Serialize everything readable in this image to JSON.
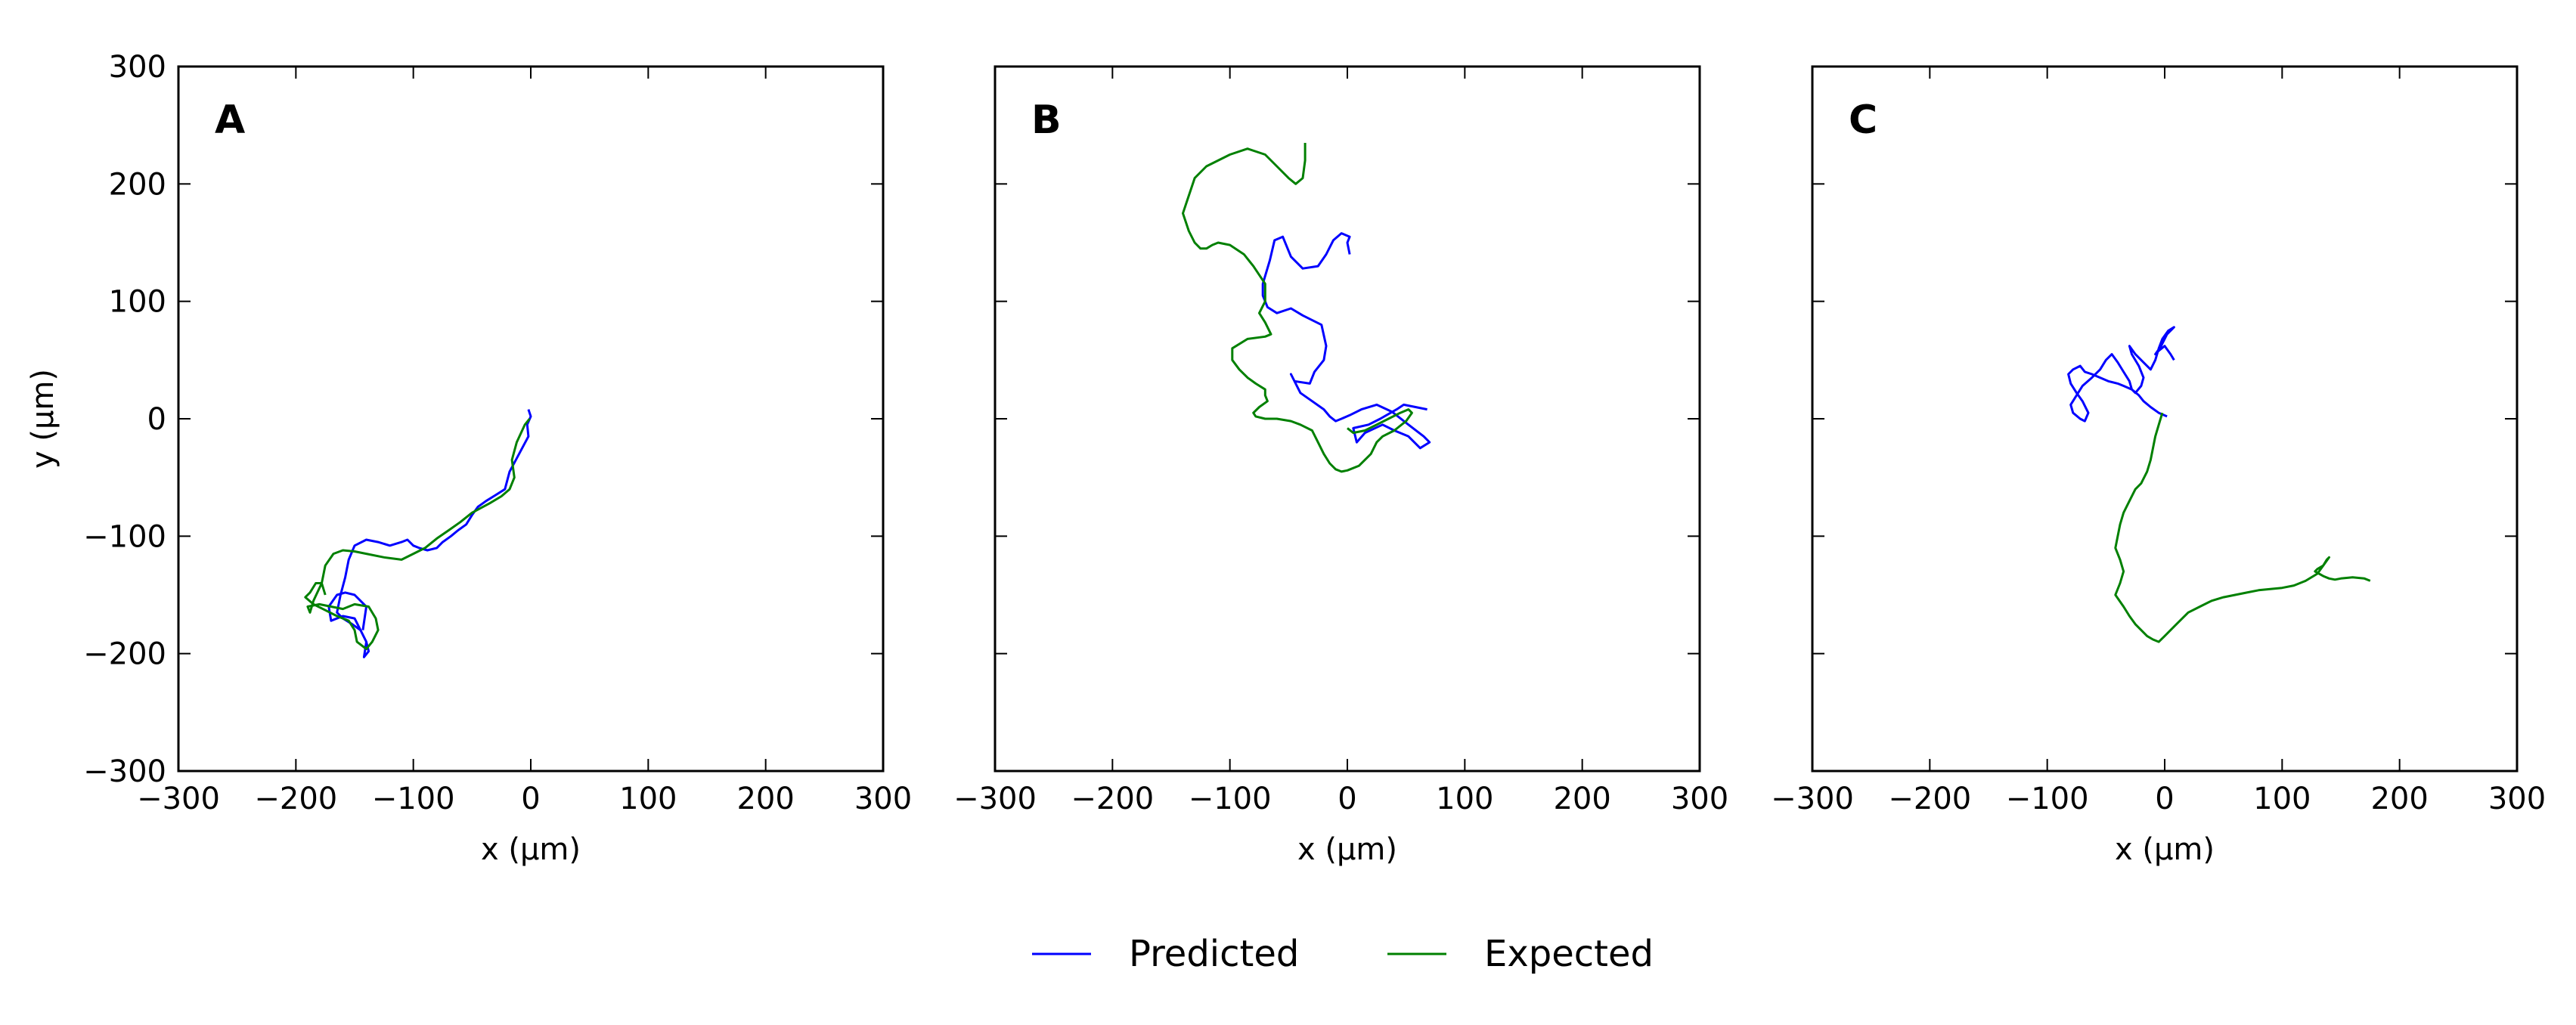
{
  "chart_data": [
    {
      "type": "line",
      "panel_label": "A",
      "xlabel": "x (µm)",
      "ylabel": "y (µm)",
      "xlim": [
        -300,
        300
      ],
      "ylim": [
        -300,
        300
      ],
      "xticks": [
        -300,
        -200,
        -100,
        0,
        100,
        200,
        300
      ],
      "yticks": [
        -300,
        -200,
        -100,
        0,
        100,
        200,
        300
      ],
      "grid": false,
      "series": [
        {
          "name": "Predicted",
          "color": "#0000ff",
          "x": [
            -2,
            0,
            -3,
            -2,
            -10,
            -18,
            -22,
            -30,
            -38,
            -45,
            -50,
            -55,
            -62,
            -68,
            -75,
            -80,
            -88,
            -95,
            -100,
            -105,
            -110,
            -120,
            -130,
            -140,
            -150,
            -155,
            -158,
            -162,
            -165,
            -160,
            -152,
            -145,
            -140,
            -138,
            -142,
            -140,
            -145,
            -150,
            -160,
            -170,
            -172,
            -165,
            -158,
            -150,
            -145,
            -140,
            -143
          ],
          "y": [
            8,
            2,
            -5,
            -15,
            -30,
            -45,
            -60,
            -65,
            -70,
            -75,
            -82,
            -90,
            -95,
            -100,
            -105,
            -110,
            -112,
            -110,
            -108,
            -103,
            -105,
            -108,
            -105,
            -103,
            -108,
            -120,
            -135,
            -150,
            -165,
            -170,
            -175,
            -180,
            -190,
            -198,
            -203,
            -190,
            -180,
            -170,
            -168,
            -172,
            -160,
            -150,
            -148,
            -150,
            -155,
            -160,
            -180
          ]
        },
        {
          "name": "Expected",
          "color": "#008000",
          "x": [
            -1,
            -5,
            -12,
            -16,
            -14,
            -18,
            -25,
            -35,
            -50,
            -60,
            -70,
            -80,
            -90,
            -100,
            -110,
            -125,
            -140,
            -150,
            -160,
            -168,
            -175,
            -178,
            -185,
            -188,
            -190,
            -180,
            -170,
            -160,
            -150,
            -138,
            -132,
            -130,
            -135,
            -140,
            -148,
            -150,
            -155,
            -165,
            -175,
            -185,
            -192,
            -188,
            -183,
            -178,
            -175
          ],
          "y": [
            0,
            -5,
            -20,
            -35,
            -50,
            -60,
            -66,
            -72,
            -80,
            -88,
            -95,
            -102,
            -110,
            -115,
            -120,
            -118,
            -115,
            -113,
            -112,
            -115,
            -125,
            -140,
            -155,
            -165,
            -160,
            -158,
            -160,
            -162,
            -158,
            -160,
            -170,
            -180,
            -190,
            -196,
            -190,
            -180,
            -172,
            -168,
            -163,
            -158,
            -152,
            -148,
            -140,
            -140,
            -150
          ]
        }
      ]
    },
    {
      "type": "line",
      "panel_label": "B",
      "xlabel": "x (µm)",
      "ylabel": "",
      "xlim": [
        -300,
        300
      ],
      "ylim": [
        -300,
        300
      ],
      "xticks": [
        -300,
        -200,
        -100,
        0,
        100,
        200,
        300
      ],
      "yticks": [
        -300,
        -200,
        -100,
        0,
        100,
        200,
        300
      ],
      "grid": false,
      "series": [
        {
          "name": "Predicted",
          "color": "#0000ff",
          "x": [
            2,
            0,
            2,
            -5,
            -12,
            -18,
            -25,
            -38,
            -48,
            -55,
            -62,
            -66,
            -72,
            -72,
            -68,
            -60,
            -48,
            -38,
            -22,
            -18,
            -20,
            -28,
            -32,
            -45,
            -48,
            -40,
            -30,
            -20,
            -15,
            -10,
            -5,
            2,
            12,
            25,
            38,
            52,
            65,
            70,
            62,
            52,
            40,
            30,
            15,
            8,
            5,
            18,
            28,
            42,
            48,
            58,
            68
          ],
          "y": [
            140,
            150,
            155,
            158,
            152,
            140,
            130,
            128,
            138,
            155,
            152,
            135,
            115,
            105,
            95,
            90,
            94,
            88,
            80,
            62,
            50,
            40,
            30,
            32,
            38,
            22,
            15,
            8,
            2,
            -2,
            0,
            3,
            8,
            12,
            6,
            -5,
            -15,
            -20,
            -25,
            -15,
            -10,
            -5,
            -12,
            -20,
            -8,
            -5,
            0,
            8,
            12,
            10,
            8
          ]
        },
        {
          "name": "Expected",
          "color": "#008000",
          "x": [
            -36,
            -36,
            -38,
            -44,
            -50,
            -60,
            -70,
            -85,
            -100,
            -120,
            -130,
            -135,
            -140,
            -135,
            -130,
            -125,
            -120,
            -115,
            -110,
            -100,
            -88,
            -80,
            -70,
            -70,
            -75,
            -70,
            -65,
            -70,
            -85,
            -98,
            -98,
            -92,
            -85,
            -78,
            -70,
            -70,
            -68,
            -75,
            -80,
            -78,
            -70,
            -60,
            -48,
            -40,
            -30,
            -25,
            -20,
            -15,
            -10,
            -5,
            0,
            10,
            20,
            25,
            30,
            40,
            50,
            55,
            52,
            45,
            35,
            25,
            15,
            5,
            0
          ],
          "y": [
            235,
            220,
            205,
            200,
            205,
            215,
            225,
            230,
            225,
            215,
            205,
            190,
            175,
            160,
            150,
            145,
            145,
            148,
            150,
            148,
            140,
            130,
            115,
            100,
            90,
            82,
            72,
            70,
            68,
            60,
            50,
            42,
            35,
            30,
            25,
            20,
            15,
            10,
            5,
            2,
            0,
            0,
            -2,
            -5,
            -10,
            -20,
            -30,
            -38,
            -43,
            -45,
            -44,
            -40,
            -30,
            -20,
            -15,
            -10,
            -2,
            5,
            8,
            5,
            0,
            -5,
            -10,
            -12,
            -8
          ]
        }
      ]
    },
    {
      "type": "line",
      "panel_label": "C",
      "xlabel": "x (µm)",
      "ylabel": "",
      "xlim": [
        -300,
        300
      ],
      "ylim": [
        -300,
        300
      ],
      "xticks": [
        -300,
        -200,
        -100,
        0,
        100,
        200,
        300
      ],
      "yticks": [
        -300,
        -200,
        -100,
        0,
        100,
        200,
        300
      ],
      "grid": false,
      "series": [
        {
          "name": "Predicted",
          "color": "#0000ff",
          "x": [
            2,
            -5,
            -12,
            -18,
            -22,
            -28,
            -35,
            -40,
            -48,
            -55,
            -62,
            -68,
            -72,
            -78,
            -82,
            -80,
            -75,
            -70,
            -65,
            -68,
            -72,
            -78,
            -80,
            -75,
            -70,
            -62,
            -55,
            -50,
            -45,
            -40,
            -35,
            -30,
            -28,
            -25,
            -20,
            -18,
            -22,
            -28,
            -30,
            -25,
            -18,
            -12,
            -8,
            -5,
            -2,
            3,
            8,
            2,
            -3,
            -8,
            -5,
            0,
            5,
            8
          ],
          "y": [
            2,
            5,
            10,
            15,
            20,
            25,
            28,
            30,
            32,
            35,
            38,
            40,
            45,
            42,
            38,
            30,
            22,
            15,
            5,
            -2,
            0,
            5,
            12,
            20,
            28,
            35,
            42,
            50,
            55,
            48,
            40,
            32,
            25,
            22,
            28,
            35,
            45,
            55,
            62,
            55,
            48,
            42,
            50,
            60,
            68,
            75,
            78,
            72,
            62,
            55,
            58,
            62,
            55,
            50
          ]
        },
        {
          "name": "Expected",
          "color": "#008000",
          "x": [
            -2,
            -5,
            -8,
            -10,
            -12,
            -15,
            -20,
            -25,
            -30,
            -35,
            -38,
            -40,
            -42,
            -38,
            -35,
            -38,
            -42,
            -35,
            -30,
            -25,
            -20,
            -15,
            -10,
            -5,
            0,
            5,
            10,
            20,
            30,
            40,
            50,
            60,
            70,
            80,
            90,
            100,
            110,
            120,
            130,
            135,
            140,
            138,
            135,
            130,
            128,
            135,
            140,
            145,
            150,
            160,
            170,
            175
          ],
          "y": [
            5,
            -5,
            -15,
            -25,
            -35,
            -45,
            -55,
            -60,
            -70,
            -80,
            -90,
            -100,
            -110,
            -120,
            -130,
            -140,
            -150,
            -160,
            -168,
            -175,
            -180,
            -185,
            -188,
            -190,
            -185,
            -180,
            -175,
            -165,
            -160,
            -155,
            -152,
            -150,
            -148,
            -146,
            -145,
            -144,
            -142,
            -138,
            -132,
            -125,
            -118,
            -120,
            -125,
            -128,
            -130,
            -134,
            -136,
            -137,
            -136,
            -135,
            -136,
            -138
          ]
        }
      ]
    }
  ],
  "legend": {
    "placement": "bottom-center",
    "items": [
      {
        "label": "Predicted",
        "color": "#0000ff"
      },
      {
        "label": "Expected",
        "color": "#008000"
      }
    ]
  }
}
